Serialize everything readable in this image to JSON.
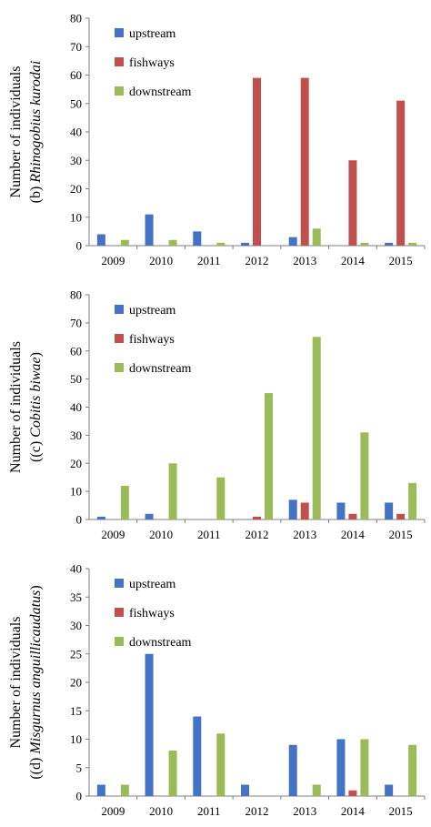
{
  "colors": {
    "upstream": "#4472C4",
    "fishways": "#C0504D",
    "downstream": "#9BBB59",
    "axis": "#7f7f7f"
  },
  "chart_data": [
    {
      "type": "bar",
      "categories": [
        "2009",
        "2010",
        "2011",
        "2012",
        "2013",
        "2014",
        "2015"
      ],
      "series": [
        {
          "name": "upstream",
          "values": [
            4,
            11,
            5,
            1,
            3,
            0,
            1
          ]
        },
        {
          "name": "fishways",
          "values": [
            0,
            0,
            0,
            59,
            59,
            30,
            51
          ]
        },
        {
          "name": "downstream",
          "values": [
            2,
            2,
            1,
            0,
            6,
            1,
            1
          ]
        }
      ],
      "ylabel_line1": "Number of individuals",
      "ylabel_prefix": "(b) ",
      "ylabel_species": "Rhinogobius kurodai",
      "ylabel_suffix": "",
      "ylim": [
        0,
        80
      ],
      "yticks": [
        0,
        10,
        20,
        30,
        40,
        50,
        60,
        70,
        80
      ],
      "legend_position": "top-left",
      "grid": false
    },
    {
      "type": "bar",
      "categories": [
        "2009",
        "2010",
        "2011",
        "2012",
        "2013",
        "2014",
        "2015"
      ],
      "series": [
        {
          "name": "upstream",
          "values": [
            1,
            2,
            0,
            0,
            7,
            6,
            6
          ]
        },
        {
          "name": "fishways",
          "values": [
            0,
            0,
            0,
            1,
            6,
            2,
            2
          ]
        },
        {
          "name": "downstream",
          "values": [
            12,
            20,
            15,
            45,
            65,
            31,
            13
          ]
        }
      ],
      "ylabel_line1": "Number of individuals",
      "ylabel_prefix": "((c) ",
      "ylabel_species": "Cobitis biwae",
      "ylabel_suffix": ")",
      "ylim": [
        0,
        80
      ],
      "yticks": [
        0,
        10,
        20,
        30,
        40,
        50,
        60,
        70,
        80
      ],
      "legend_position": "top-left",
      "grid": false
    },
    {
      "type": "bar",
      "categories": [
        "2009",
        "2010",
        "2011",
        "2012",
        "2013",
        "2014",
        "2015"
      ],
      "series": [
        {
          "name": "upstream",
          "values": [
            2,
            25,
            14,
            2,
            9,
            10,
            2
          ]
        },
        {
          "name": "fishways",
          "values": [
            0,
            0,
            0,
            0,
            0,
            1,
            0
          ]
        },
        {
          "name": "downstream",
          "values": [
            2,
            8,
            11,
            0,
            2,
            10,
            9
          ]
        }
      ],
      "ylabel_line1": "Number of individuals",
      "ylabel_prefix": "((d) ",
      "ylabel_species": "Misgurnus anguillicaudatus",
      "ylabel_suffix": ")",
      "ylim": [
        0,
        40
      ],
      "yticks": [
        0,
        5,
        10,
        15,
        20,
        25,
        30,
        35,
        40
      ],
      "legend_position": "top-left",
      "grid": false
    }
  ]
}
